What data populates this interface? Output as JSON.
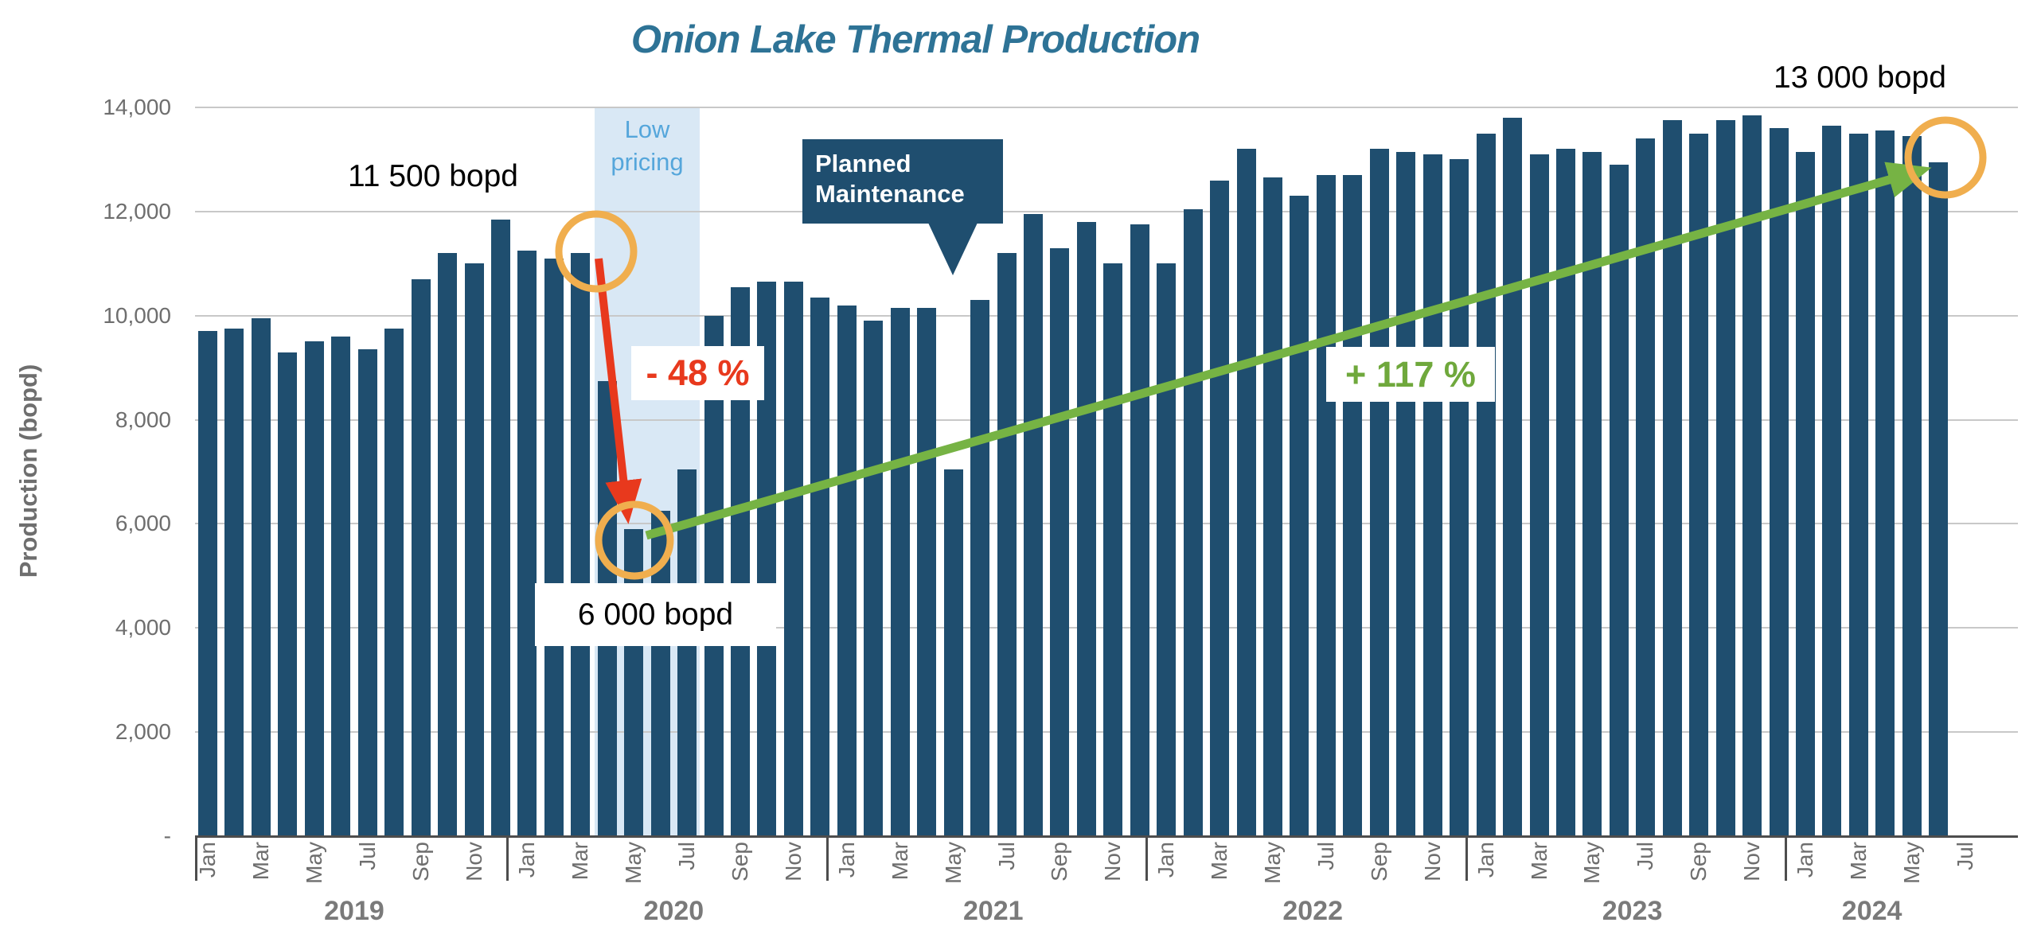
{
  "annotations": {
    "peak": {
      "label": "11 500 bopd"
    },
    "trough": {
      "label": "6 000 bopd"
    },
    "final": {
      "label": "13 000 bopd"
    },
    "decline": {
      "label": "- 48 %"
    },
    "growth": {
      "label": "+ 117 %"
    },
    "band": {
      "lines": [
        "Low",
        "pricing"
      ]
    },
    "callout": {
      "lines": [
        "Planned",
        "Maintenance"
      ]
    }
  },
  "colors": {
    "bar": "#1F4E6F",
    "title": "#2E7396",
    "band_fill": "#D9E8F5",
    "band_text": "#55A6DB",
    "callout_bg": "#1F4E6F",
    "decline_red": "#E8391D",
    "growth_green": "#76B344",
    "growth_text": "#6FA83C",
    "circle_orange": "#F0AE4E",
    "axis_text": "#6E6E6E",
    "gridline": "#C8C8C8"
  },
  "chart_data": {
    "type": "bar",
    "title": "Onion Lake Thermal Production",
    "xlabel": "",
    "ylabel": "Production (bopd)",
    "ylim": [
      0,
      14000
    ],
    "ytick_step": 2000,
    "ytick_labels": [
      "-",
      "2,000",
      "4,000",
      "6,000",
      "8,000",
      "10,000",
      "12,000",
      "14,000"
    ],
    "grid": true,
    "legend_position": "none",
    "years": [
      "2019",
      "2020",
      "2021",
      "2022",
      "2023",
      "2024"
    ],
    "month_tick_labels_per_year": [
      "Jan",
      "Mar",
      "May",
      "Jul",
      "Sep",
      "Nov"
    ],
    "month_tick_labels_2024": [
      "Jan",
      "Mar",
      "May"
    ],
    "trailing_tick_label": "Jul",
    "series_by_year": {
      "2019": [
        9700,
        9750,
        9950,
        9300,
        9500,
        9600,
        9350,
        9750,
        10700,
        11200,
        11000,
        11850
      ],
      "2020": [
        11250,
        11100,
        11200,
        8750,
        5900,
        6250,
        7050,
        10000,
        10550,
        10650,
        10650,
        10350
      ],
      "2021": [
        10200,
        9900,
        10150,
        10150,
        7050,
        10300,
        11200,
        11950,
        11300,
        11800,
        11000,
        11750
      ],
      "2022": [
        11000,
        12050,
        12600,
        13200,
        12650,
        12300,
        12700,
        12700,
        13200,
        13150,
        13100,
        13000
      ],
      "2023": [
        13500,
        13800,
        13100,
        13200,
        13150,
        12900,
        13400,
        13750,
        13500,
        13750,
        13850,
        13600
      ],
      "2024": [
        13150,
        13650,
        13500,
        13550,
        13450,
        12950
      ]
    },
    "highlight_band": {
      "label": "Low pricing",
      "from_month": "Apr 2020",
      "to_month": "Jul 2020",
      "from_index": 15,
      "to_index": 18
    },
    "annotations": [
      {
        "type": "circled_point",
        "text": "11 500 bopd",
        "anchor_month": "Mar 2020",
        "approx_value": 11500
      },
      {
        "type": "circled_point",
        "text": "6 000 bopd",
        "anchor_month": "May 2020",
        "approx_value": 6000
      },
      {
        "type": "circled_point",
        "text": "13 000 bopd",
        "anchor_month": "Jun 2024",
        "approx_value": 13000
      },
      {
        "type": "arrow",
        "text": "- 48 %",
        "from_month": "Mar 2020",
        "to_month": "May 2020",
        "color": "#E8391D"
      },
      {
        "type": "arrow",
        "text": "+ 117 %",
        "from_month": "May 2020",
        "to_month": "Jun 2024",
        "color": "#76B344"
      },
      {
        "type": "band",
        "text": "Low pricing",
        "from_month": "Apr 2020",
        "to_month": "Jul 2020"
      },
      {
        "type": "callout",
        "text": "Planned Maintenance",
        "anchor_month": "May 2021"
      }
    ]
  }
}
